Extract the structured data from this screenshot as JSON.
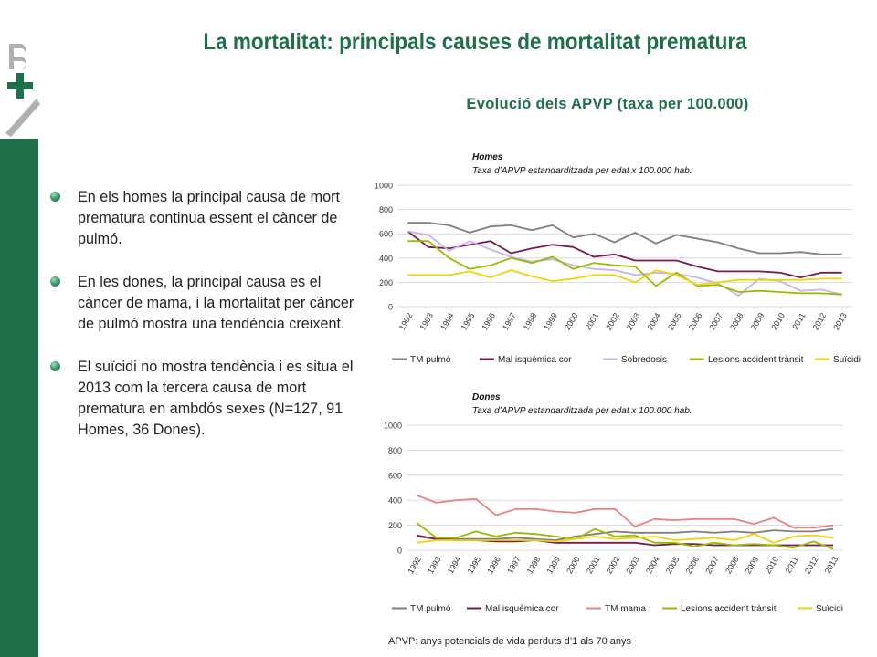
{
  "page": {
    "title": "La mortalitat: principals causes de mortalitat prematura",
    "subtitle": "Evolució dels APVP (taxa per 100.000)",
    "bullets": [
      "En els homes la principal causa de mort prematura continua essent el càncer de pulmó.",
      "En les dones, la principal causa es el càncer de mama, i la mortalitat per càncer de pulmó mostra una tendència creixent.",
      "El suïcidi no mostra tendència i es situa el 2013 com la tercera causa de mort prematura en ambdós sexes (N=127, 91 Homes, 36 Dones)."
    ],
    "footnote": "APVP: anys  potencials  de vida perduts  d’1 als 70 anys",
    "logo_text": "+B",
    "colors": {
      "brand_green": "#1f6f4a",
      "sidebar": "#1f6f4a"
    }
  },
  "chart_data": [
    {
      "type": "line",
      "title": "Homes",
      "subtitle": "Taxa d’APVP estandarditzada per edat x 100.000 hab.",
      "x": [
        "1992",
        "1993",
        "1994",
        "1995",
        "1996",
        "1997",
        "1998",
        "1999",
        "2000",
        "2001",
        "2002",
        "2003",
        "2004",
        "2005",
        "2006",
        "2007",
        "2008",
        "2009",
        "2010",
        "2011",
        "2012",
        "2013"
      ],
      "ylim": [
        0,
        1000
      ],
      "yticks": [
        0,
        200,
        400,
        600,
        800,
        1000
      ],
      "grid": true,
      "legend": "bottom",
      "series": [
        {
          "name": "TM pulmó",
          "color": "#7f7f7f",
          "values": [
            690,
            690,
            670,
            610,
            660,
            670,
            630,
            670,
            570,
            600,
            530,
            610,
            520,
            590,
            560,
            530,
            480,
            440,
            440,
            450,
            430,
            430
          ]
        },
        {
          "name": "Mal isquèmica cor",
          "color": "#7b1a4e",
          "values": [
            620,
            490,
            480,
            510,
            540,
            440,
            480,
            510,
            490,
            410,
            430,
            380,
            380,
            380,
            330,
            290,
            290,
            290,
            280,
            240,
            280,
            280
          ]
        },
        {
          "name": "Sobredosis",
          "color": "#c9b3ec",
          "values": [
            620,
            590,
            460,
            540,
            470,
            410,
            370,
            390,
            340,
            310,
            300,
            260,
            280,
            270,
            240,
            190,
            90,
            230,
            210,
            130,
            140,
            100
          ]
        },
        {
          "name": "Lesions accident trànsit",
          "color": "#99bb00",
          "values": [
            540,
            540,
            400,
            310,
            340,
            400,
            360,
            410,
            310,
            360,
            340,
            330,
            170,
            280,
            170,
            180,
            120,
            130,
            120,
            110,
            110,
            100
          ]
        },
        {
          "name": "Suïcidi",
          "color": "#f2d20a",
          "values": [
            260,
            260,
            260,
            290,
            240,
            300,
            250,
            210,
            230,
            260,
            260,
            200,
            300,
            260,
            180,
            200,
            220,
            220,
            220,
            220,
            230,
            230
          ]
        }
      ]
    },
    {
      "type": "line",
      "title": "Dones",
      "subtitle": "Taxa d’APVP estandarditzada per edat x 100.000 hab.",
      "x": [
        "1992",
        "1993",
        "1994",
        "1995",
        "1996",
        "1997",
        "1998",
        "1999",
        "2000",
        "2001",
        "2002",
        "2003",
        "2004",
        "2005",
        "2006",
        "2007",
        "2008",
        "2009",
        "2010",
        "2011",
        "2012",
        "2013"
      ],
      "ylim": [
        0,
        1000
      ],
      "yticks": [
        0,
        200,
        400,
        600,
        800,
        1000
      ],
      "grid": true,
      "legend": "bottom",
      "series": [
        {
          "name": "TM pulmó",
          "color": "#7f7f7f",
          "values": [
            110,
            90,
            90,
            90,
            90,
            100,
            90,
            80,
            110,
            130,
            150,
            140,
            140,
            140,
            150,
            140,
            150,
            140,
            160,
            150,
            150,
            170
          ]
        },
        {
          "name": "Mal isquèmica cor",
          "color": "#7b1a4e",
          "values": [
            120,
            90,
            80,
            80,
            70,
            70,
            80,
            60,
            60,
            60,
            60,
            60,
            40,
            50,
            50,
            40,
            40,
            40,
            40,
            40,
            40,
            40
          ]
        },
        {
          "name": "TM mama",
          "color": "#ee8080",
          "values": [
            440,
            380,
            400,
            410,
            280,
            330,
            330,
            310,
            300,
            330,
            330,
            190,
            250,
            240,
            250,
            250,
            250,
            210,
            260,
            180,
            180,
            200
          ]
        },
        {
          "name": "Lesions accident trànsit",
          "color": "#99bb00",
          "values": [
            220,
            100,
            100,
            150,
            110,
            140,
            130,
            110,
            90,
            170,
            110,
            120,
            60,
            60,
            30,
            60,
            40,
            50,
            40,
            20,
            70,
            10
          ]
        },
        {
          "name": "Suïcidi",
          "color": "#f2d20a",
          "values": [
            60,
            80,
            80,
            80,
            80,
            80,
            80,
            70,
            90,
            110,
            90,
            100,
            110,
            80,
            90,
            100,
            80,
            130,
            60,
            110,
            120,
            100
          ]
        }
      ]
    }
  ]
}
